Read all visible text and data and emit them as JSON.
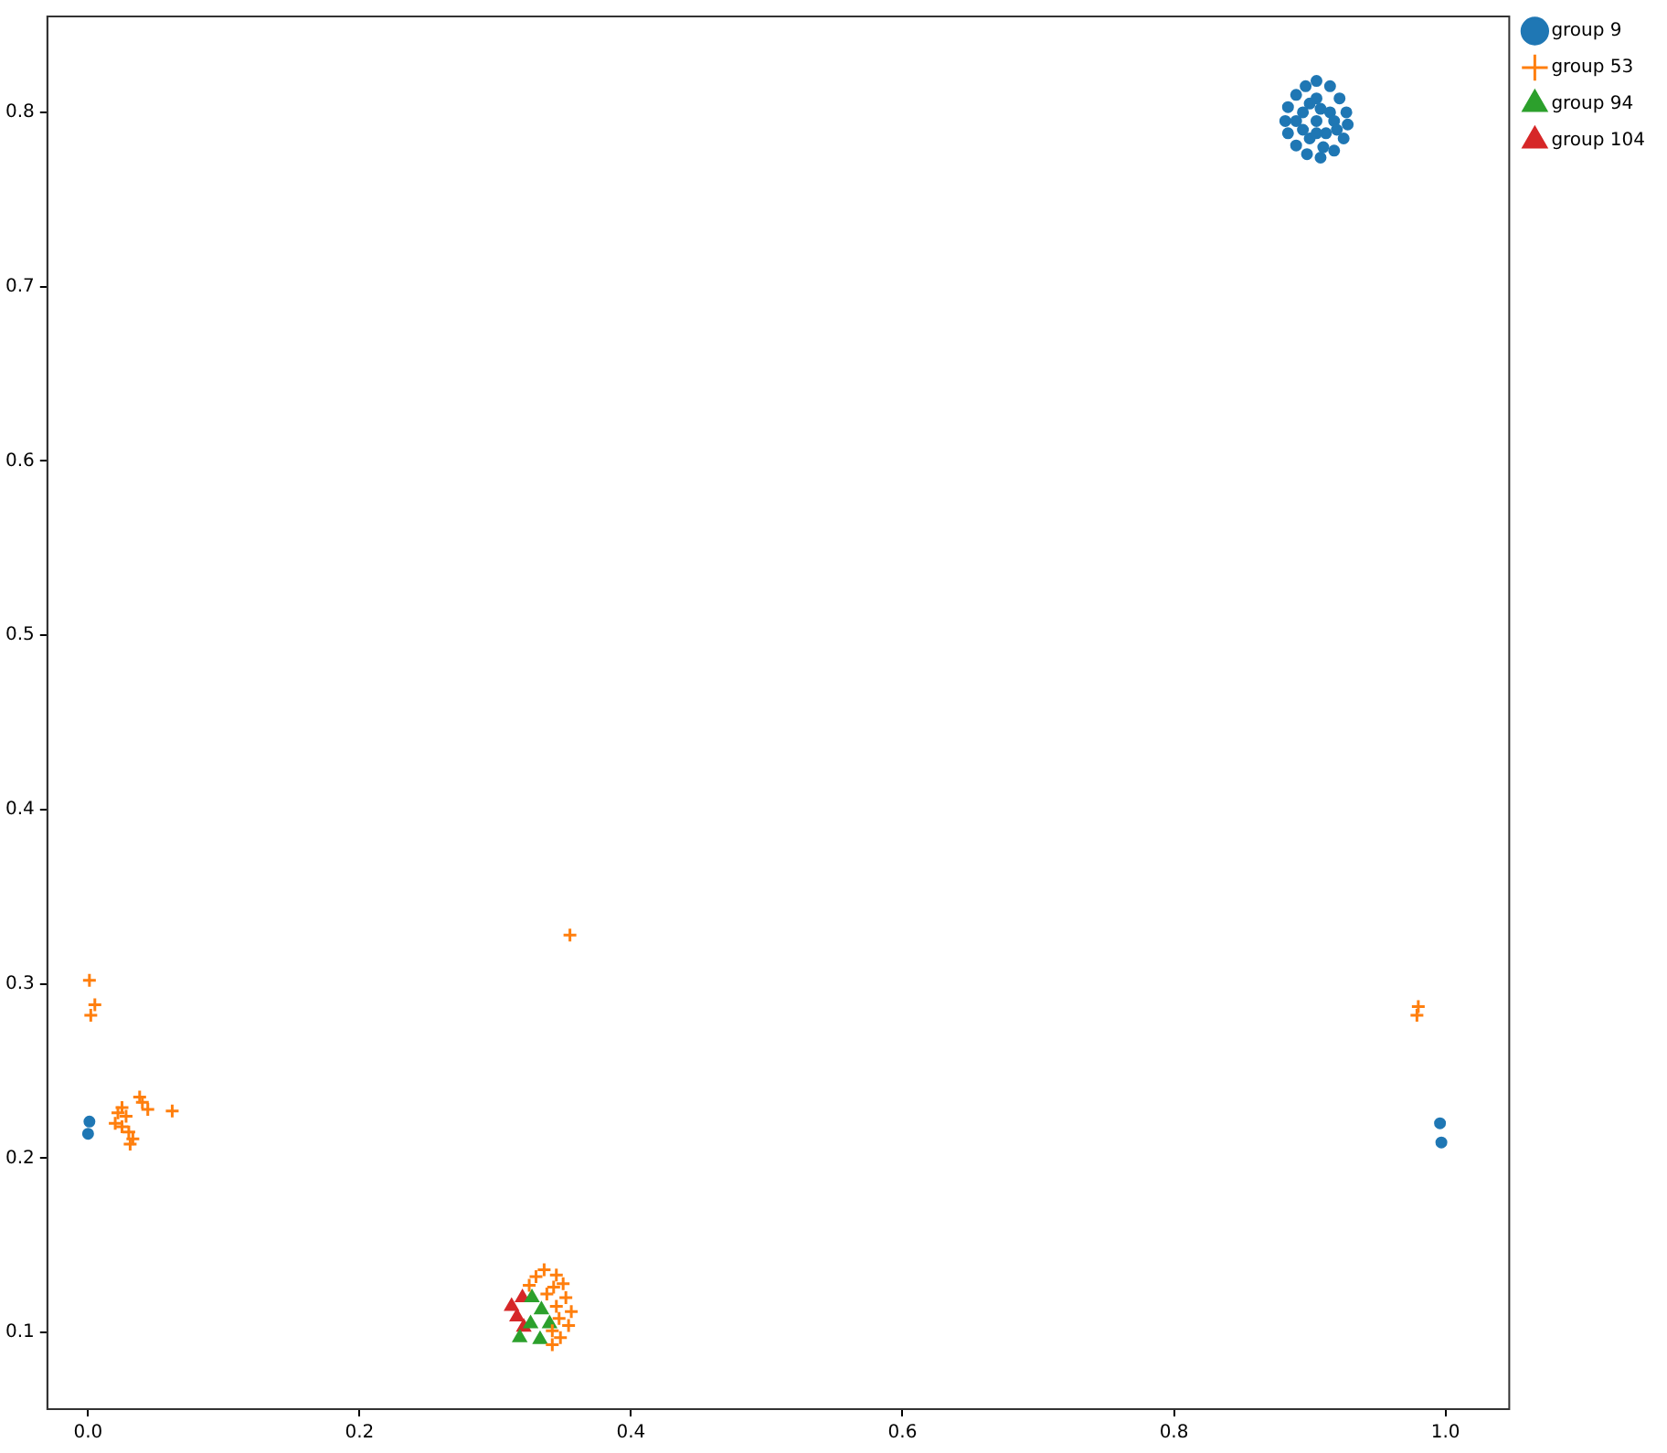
{
  "chart_data": {
    "type": "scatter",
    "legend": "top right",
    "grid": false,
    "xlim": [
      -0.03,
      1.047
    ],
    "xticks": [
      {
        "value": 0,
        "label": "0.0"
      },
      0.2,
      0.4,
      0.6,
      0.8,
      {
        "value": 1,
        "label": "1.0"
      }
    ],
    "ylim": [
      0.056,
      0.855
    ],
    "yticks": [
      0.1,
      0.2,
      0.3,
      0.4,
      0.5,
      0.6,
      0.7,
      0.8
    ],
    "series": [
      {
        "name": "group 9",
        "color": "#1f77b4",
        "marker": "circle",
        "x": [
          0.905,
          0.915,
          0.922,
          0.927,
          0.928,
          0.925,
          0.918,
          0.908,
          0.898,
          0.89,
          0.884,
          0.882,
          0.884,
          0.89,
          0.897,
          0.905,
          0.895,
          0.915,
          0.9,
          0.912,
          0.895,
          0.918,
          0.905,
          0.89,
          0.92,
          0.9,
          0.91,
          0.905,
          0.908,
          0.001,
          0.0,
          0.996,
          0.997
        ],
        "values": [
          0.818,
          0.815,
          0.808,
          0.8,
          0.793,
          0.785,
          0.778,
          0.774,
          0.776,
          0.781,
          0.788,
          0.795,
          0.803,
          0.81,
          0.815,
          0.795,
          0.8,
          0.8,
          0.785,
          0.788,
          0.79,
          0.795,
          0.808,
          0.795,
          0.79,
          0.805,
          0.78,
          0.788,
          0.802,
          0.221,
          0.214,
          0.22,
          0.209
        ]
      },
      {
        "name": "group 53",
        "color": "#ff7f0e",
        "marker": "cross",
        "x": [
          0.001,
          0.005,
          0.002,
          0.022,
          0.025,
          0.02,
          0.028,
          0.03,
          0.033,
          0.031,
          0.038,
          0.04,
          0.044,
          0.062,
          0.025,
          0.355,
          0.98,
          0.979,
          0.336,
          0.345,
          0.35,
          0.352,
          0.356,
          0.354,
          0.348,
          0.342,
          0.325,
          0.33,
          0.338,
          0.345,
          0.347,
          0.342,
          0.343
        ],
        "values": [
          0.302,
          0.288,
          0.282,
          0.226,
          0.229,
          0.22,
          0.224,
          0.215,
          0.211,
          0.208,
          0.235,
          0.232,
          0.228,
          0.227,
          0.218,
          0.328,
          0.287,
          0.282,
          0.136,
          0.133,
          0.128,
          0.12,
          0.112,
          0.104,
          0.097,
          0.093,
          0.127,
          0.132,
          0.122,
          0.115,
          0.108,
          0.101,
          0.126
        ]
      },
      {
        "name": "group 94",
        "color": "#2ca02c",
        "marker": "triangle",
        "x": [
          0.318,
          0.333,
          0.34,
          0.334,
          0.327,
          0.326
        ],
        "values": [
          0.097,
          0.096,
          0.105,
          0.113,
          0.12,
          0.105
        ]
      },
      {
        "name": "group 104",
        "color": "#d62728",
        "marker": "triangle",
        "x": [
          0.312,
          0.32,
          0.321,
          0.316
        ],
        "values": [
          0.115,
          0.12,
          0.103,
          0.109
        ]
      }
    ]
  }
}
